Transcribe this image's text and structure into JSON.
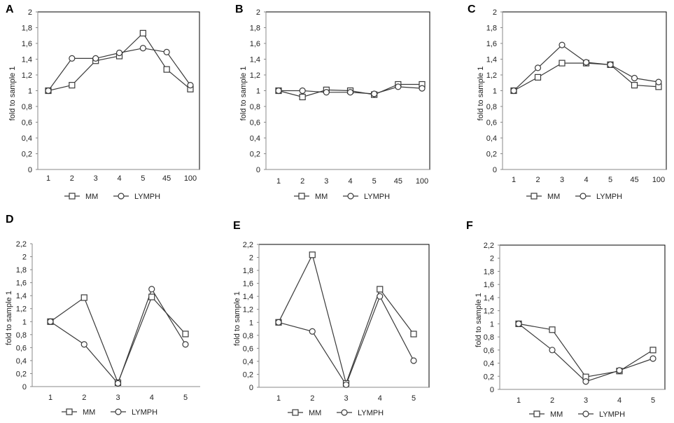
{
  "chart_data": [
    {
      "panel": "A",
      "type": "line",
      "categories": [
        "1",
        "2",
        "3",
        "4",
        "5",
        "45",
        "100"
      ],
      "series": [
        {
          "name": "MM",
          "marker": "square",
          "values": [
            1.0,
            1.07,
            1.38,
            1.44,
            1.73,
            1.27,
            1.02
          ]
        },
        {
          "name": "LYMPH",
          "marker": "circle",
          "values": [
            1.0,
            1.41,
            1.41,
            1.48,
            1.54,
            1.49,
            1.07
          ]
        }
      ],
      "ylabel": "fold to sample 1",
      "ylim": [
        0,
        2
      ],
      "ystep": 0.2,
      "yticks": [
        "0",
        "0,2",
        "0,4",
        "0,6",
        "0,8",
        "1",
        "1,2",
        "1,4",
        "1,6",
        "1,8",
        "2"
      ],
      "frame": true
    },
    {
      "panel": "B",
      "type": "line",
      "categories": [
        "1",
        "2",
        "3",
        "4",
        "5",
        "45",
        "100"
      ],
      "series": [
        {
          "name": "MM",
          "marker": "square",
          "values": [
            1.0,
            0.92,
            1.01,
            1.0,
            0.95,
            1.08,
            1.08
          ]
        },
        {
          "name": "LYMPH",
          "marker": "circle",
          "values": [
            1.0,
            1.0,
            0.98,
            0.98,
            0.96,
            1.05,
            1.03
          ]
        }
      ],
      "ylabel": "fold to sample 1",
      "ylim": [
        0,
        2
      ],
      "ystep": 0.2,
      "yticks": [
        "0",
        "0,2",
        "0,4",
        "0,6",
        "0,8",
        "1",
        "1,2",
        "1,4",
        "1,6",
        "1,8",
        "2"
      ],
      "frame": true
    },
    {
      "panel": "C",
      "type": "line",
      "categories": [
        "1",
        "2",
        "3",
        "4",
        "5",
        "45",
        "100"
      ],
      "series": [
        {
          "name": "MM",
          "marker": "square",
          "values": [
            1.0,
            1.17,
            1.35,
            1.35,
            1.33,
            1.07,
            1.05
          ]
        },
        {
          "name": "LYMPH",
          "marker": "circle",
          "values": [
            1.0,
            1.29,
            1.58,
            1.36,
            1.33,
            1.16,
            1.11
          ]
        }
      ],
      "ylabel": "fold to sample 1",
      "ylim": [
        0,
        2
      ],
      "ystep": 0.2,
      "yticks": [
        "0",
        "0,2",
        "0,4",
        "0,6",
        "0,8",
        "1",
        "1,2",
        "1,4",
        "1,6",
        "1,8",
        "2"
      ],
      "frame": true
    },
    {
      "panel": "D",
      "type": "line",
      "categories": [
        "1",
        "2",
        "3",
        "4",
        "5"
      ],
      "series": [
        {
          "name": "MM",
          "marker": "square",
          "values": [
            1.0,
            1.37,
            0.06,
            1.38,
            0.81
          ]
        },
        {
          "name": "LYMPH",
          "marker": "circle",
          "values": [
            1.0,
            0.65,
            0.05,
            1.5,
            0.65
          ]
        }
      ],
      "ylabel": "fold to sample 1",
      "ylim": [
        0,
        2.2
      ],
      "ystep": 0.2,
      "yticks": [
        "0",
        "0,2",
        "0,4",
        "0,6",
        "0,8",
        "1",
        "1,2",
        "1,4",
        "1,6",
        "1,8",
        "2",
        "2,2"
      ],
      "frame": false
    },
    {
      "panel": "E",
      "type": "line",
      "categories": [
        "1",
        "2",
        "3",
        "4",
        "5"
      ],
      "series": [
        {
          "name": "MM",
          "marker": "square",
          "values": [
            1.0,
            2.04,
            0.06,
            1.51,
            0.82
          ]
        },
        {
          "name": "LYMPH",
          "marker": "circle",
          "values": [
            1.0,
            0.86,
            0.04,
            1.4,
            0.41
          ]
        }
      ],
      "ylabel": "fold to sample 1",
      "ylim": [
        0,
        2.2
      ],
      "ystep": 0.2,
      "yticks": [
        "0",
        "0,2",
        "0,4",
        "0,6",
        "0,8",
        "1",
        "1,2",
        "1,4",
        "1,6",
        "1,8",
        "2",
        "2,2"
      ],
      "frame": true
    },
    {
      "panel": "F",
      "type": "line",
      "categories": [
        "1",
        "2",
        "3",
        "4",
        "5"
      ],
      "series": [
        {
          "name": "MM",
          "marker": "square",
          "values": [
            1.0,
            0.91,
            0.19,
            0.28,
            0.6
          ]
        },
        {
          "name": "LYMPH",
          "marker": "circle",
          "values": [
            1.0,
            0.6,
            0.12,
            0.29,
            0.47
          ]
        }
      ],
      "ylabel": "fold to sample 1",
      "ylim": [
        0,
        2.2
      ],
      "ystep": 0.2,
      "yticks": [
        "0",
        "0,2",
        "0,4",
        "0,6",
        "0,8",
        "1",
        "1,2",
        "1,4",
        "1,6",
        "1,8",
        "2",
        "2,2"
      ],
      "frame": true
    }
  ],
  "colors": {
    "line": "#3a3a3a",
    "marker_fill": "#ffffff",
    "frame": "#000000",
    "axis": "#888888"
  }
}
